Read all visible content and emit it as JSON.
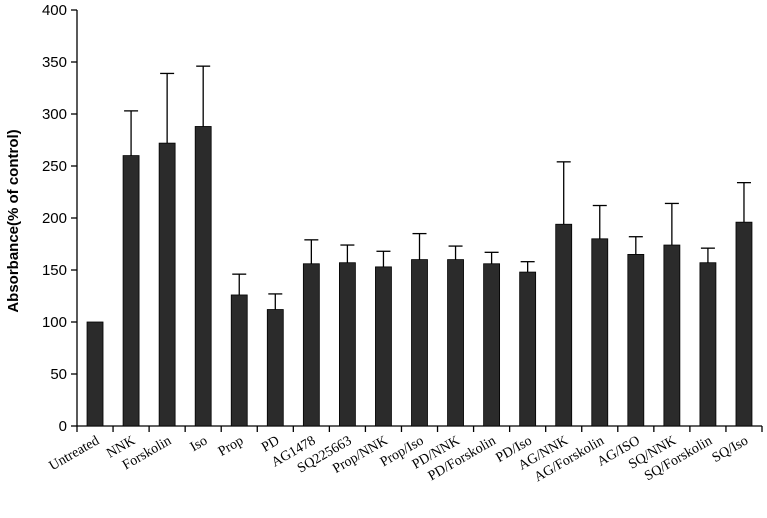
{
  "chart_data": {
    "type": "bar",
    "title": "",
    "xlabel": "",
    "ylabel": "Absorbance(% of control)",
    "ylim": [
      0,
      400
    ],
    "yticks": [
      0,
      50,
      100,
      150,
      200,
      250,
      300,
      350,
      400
    ],
    "grid": false,
    "bar_color": "#2b2b2b",
    "categories": [
      "Untreated",
      "NNK",
      "Forskolin",
      "Iso",
      "Prop",
      "PD",
      "AG1478",
      "SQ225663",
      "Prop/NNK",
      "Prop/Iso",
      "PD/NNK",
      "PD/Forskolin",
      "PD/Iso",
      "AG/NNK",
      "AG/Forskolin",
      "AG/ISO",
      "SQ/NNK",
      "SQ/Forskolin",
      "SQ/Iso"
    ],
    "values": [
      100,
      260,
      272,
      288,
      126,
      112,
      156,
      157,
      153,
      160,
      160,
      156,
      148,
      194,
      180,
      165,
      174,
      157,
      196
    ],
    "error_plus": [
      0,
      43,
      67,
      58,
      20,
      15,
      23,
      17,
      15,
      25,
      13,
      11,
      10,
      60,
      32,
      17,
      40,
      14,
      38
    ]
  }
}
